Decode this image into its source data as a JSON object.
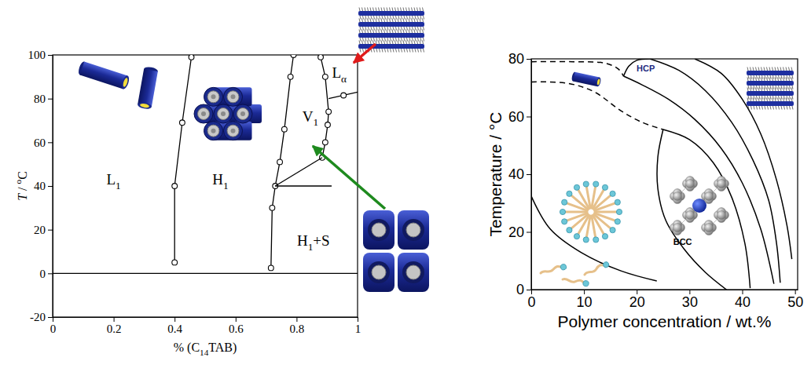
{
  "chart_data": [
    {
      "type": "line",
      "x_label": [
        {
          "text": "% (C"
        },
        {
          "text": "14",
          "style": "sub"
        },
        {
          "text": "TAB)"
        }
      ],
      "y_label": [
        {
          "text": "T",
          "style": "italic"
        },
        {
          "text": " / "
        },
        {
          "text": "o",
          "style": "sup"
        },
        {
          "text": "C"
        }
      ],
      "xlim": [
        0,
        1
      ],
      "xticks": [
        0,
        0.2,
        0.4,
        0.6,
        0.8,
        1
      ],
      "ylim": [
        -20,
        100
      ],
      "yticks": [
        -20,
        0,
        20,
        40,
        60,
        80,
        100
      ],
      "series": [
        {
          "x": [
            0.4,
            0.4,
            0.425,
            0.455
          ],
          "values": [
            5,
            40,
            69,
            99
          ],
          "color": "#000000",
          "marker": "circle",
          "line_style": "solid"
        },
        {
          "x": [
            0.716,
            0.72,
            0.73,
            0.745,
            0.76,
            0.78,
            0.79
          ],
          "values": [
            2.5,
            30,
            40,
            51,
            66,
            90,
            100
          ],
          "color": "#000000",
          "marker": "circle",
          "line_style": "solid"
        },
        {
          "x": [
            0.879,
            0.894,
            0.905,
            0.902,
            0.894,
            0.884
          ],
          "values": [
            99,
            90,
            74,
            68,
            60,
            53
          ],
          "color": "#000000",
          "marker": "circle",
          "line_style": "solid"
        },
        {
          "x": [
            0.73,
            0.884
          ],
          "values": [
            40,
            53
          ],
          "color": "#000000",
          "marker": "none",
          "line_style": "solid"
        },
        {
          "x": [
            0.73,
            0.915
          ],
          "values": [
            40,
            40
          ],
          "color": "#000000",
          "marker": "none",
          "line_style": "solid"
        },
        {
          "x": [
            0.905,
            1
          ],
          "values": [
            80,
            83
          ],
          "color": "#000000",
          "marker": "none",
          "line_style": "solid"
        },
        {
          "x": [
            0.954
          ],
          "values": [
            81.5
          ],
          "color": "#000000",
          "marker": "circle",
          "line_style": "none"
        },
        {
          "x": [
            0,
            1
          ],
          "values": [
            0,
            0
          ],
          "color": "#000000",
          "marker": "none",
          "line_style": "solid"
        }
      ],
      "annotations": [
        {
          "segments": [
            {
              "text": "L"
            },
            {
              "text": "1",
              "style": "sub"
            }
          ],
          "x": 0.2,
          "y": 43
        },
        {
          "segments": [
            {
              "text": "H"
            },
            {
              "text": "1",
              "style": "sub"
            }
          ],
          "x": 0.55,
          "y": 43
        },
        {
          "segments": [
            {
              "text": "V"
            },
            {
              "text": "1",
              "style": "sub"
            }
          ],
          "x": 0.845,
          "y": 72
        },
        {
          "segments": [
            {
              "text": "L"
            },
            {
              "text": "α",
              "style": "sub"
            }
          ],
          "x": 0.94,
          "y": 92
        },
        {
          "segments": [
            {
              "text": "H"
            },
            {
              "text": "1",
              "style": "sub"
            },
            {
              "text": "+S"
            }
          ],
          "x": 0.855,
          "y": 15
        }
      ]
    },
    {
      "type": "line",
      "x_label": [
        {
          "text": "Polymer concentration / wt.%"
        }
      ],
      "y_label": [
        {
          "text": "Temperature / °C"
        }
      ],
      "xlim": [
        0,
        50.5
      ],
      "xticks": [
        0,
        10,
        20,
        30,
        40,
        50
      ],
      "ylim": [
        0,
        80
      ],
      "yticks": [
        0,
        20,
        40,
        60,
        80
      ],
      "series": [
        {
          "x": [
            0,
            8,
            14,
            16.5,
            17.5
          ],
          "values": [
            79,
            79,
            78.5,
            76.5,
            74
          ],
          "color": "#000000",
          "marker": "none",
          "line_style": "dashed"
        },
        {
          "x": [
            0,
            7,
            12,
            17,
            21,
            25
          ],
          "values": [
            72,
            71.5,
            68.5,
            62,
            58,
            55.5
          ],
          "color": "#000000",
          "marker": "none",
          "line_style": "dashed"
        },
        {
          "x": [
            17.5,
            21,
            26,
            31,
            36,
            40,
            43.5,
            46
          ],
          "values": [
            74,
            71,
            66,
            59,
            49,
            37,
            21,
            2
          ],
          "color": "#000000",
          "marker": "none",
          "line_style": "solid"
        },
        {
          "x": [
            17.5,
            18.5,
            20,
            22.5
          ],
          "values": [
            74,
            77.5,
            79.5,
            80
          ],
          "color": "#000000",
          "marker": "none",
          "line_style": "solid"
        },
        {
          "x": [
            22.5,
            28,
            33,
            38,
            42,
            45,
            46.5,
            47.2
          ],
          "values": [
            80,
            76,
            69,
            58,
            45,
            31,
            16,
            2.4
          ],
          "color": "#000000",
          "marker": "none",
          "line_style": "solid"
        },
        {
          "x": [
            31,
            36,
            40,
            43.5,
            46.5,
            48.5,
            49.4
          ],
          "values": [
            80,
            75,
            66,
            54,
            38,
            22,
            10.6
          ],
          "color": "#000000",
          "marker": "none",
          "line_style": "solid"
        },
        {
          "x": [
            25,
            24,
            24,
            25.5,
            29,
            33,
            37
          ],
          "values": [
            55.5,
            46,
            35,
            24,
            14,
            6,
            0
          ],
          "color": "#000000",
          "marker": "none",
          "line_style": "solid"
        },
        {
          "x": [
            25,
            30,
            34.5,
            38,
            40.5,
            41.5
          ],
          "values": [
            55.5,
            52,
            44,
            32,
            16,
            0.5
          ],
          "color": "#000000",
          "marker": "none",
          "line_style": "solid"
        },
        {
          "x": [
            0,
            3.6,
            9.5,
            17,
            23.8
          ],
          "values": [
            32.4,
            21,
            12.8,
            6.5,
            3
          ],
          "color": "#000000",
          "marker": "none",
          "line_style": "solid"
        }
      ],
      "annotations": [
        {
          "segments": [
            {
              "text": "HCP"
            }
          ],
          "x": 21.7,
          "y": 76.7,
          "color": "#1f2a80"
        },
        {
          "segments": [
            {
              "text": "BCC"
            }
          ],
          "x": 28.7,
          "y": 16.6,
          "color": "#000000"
        }
      ]
    }
  ]
}
